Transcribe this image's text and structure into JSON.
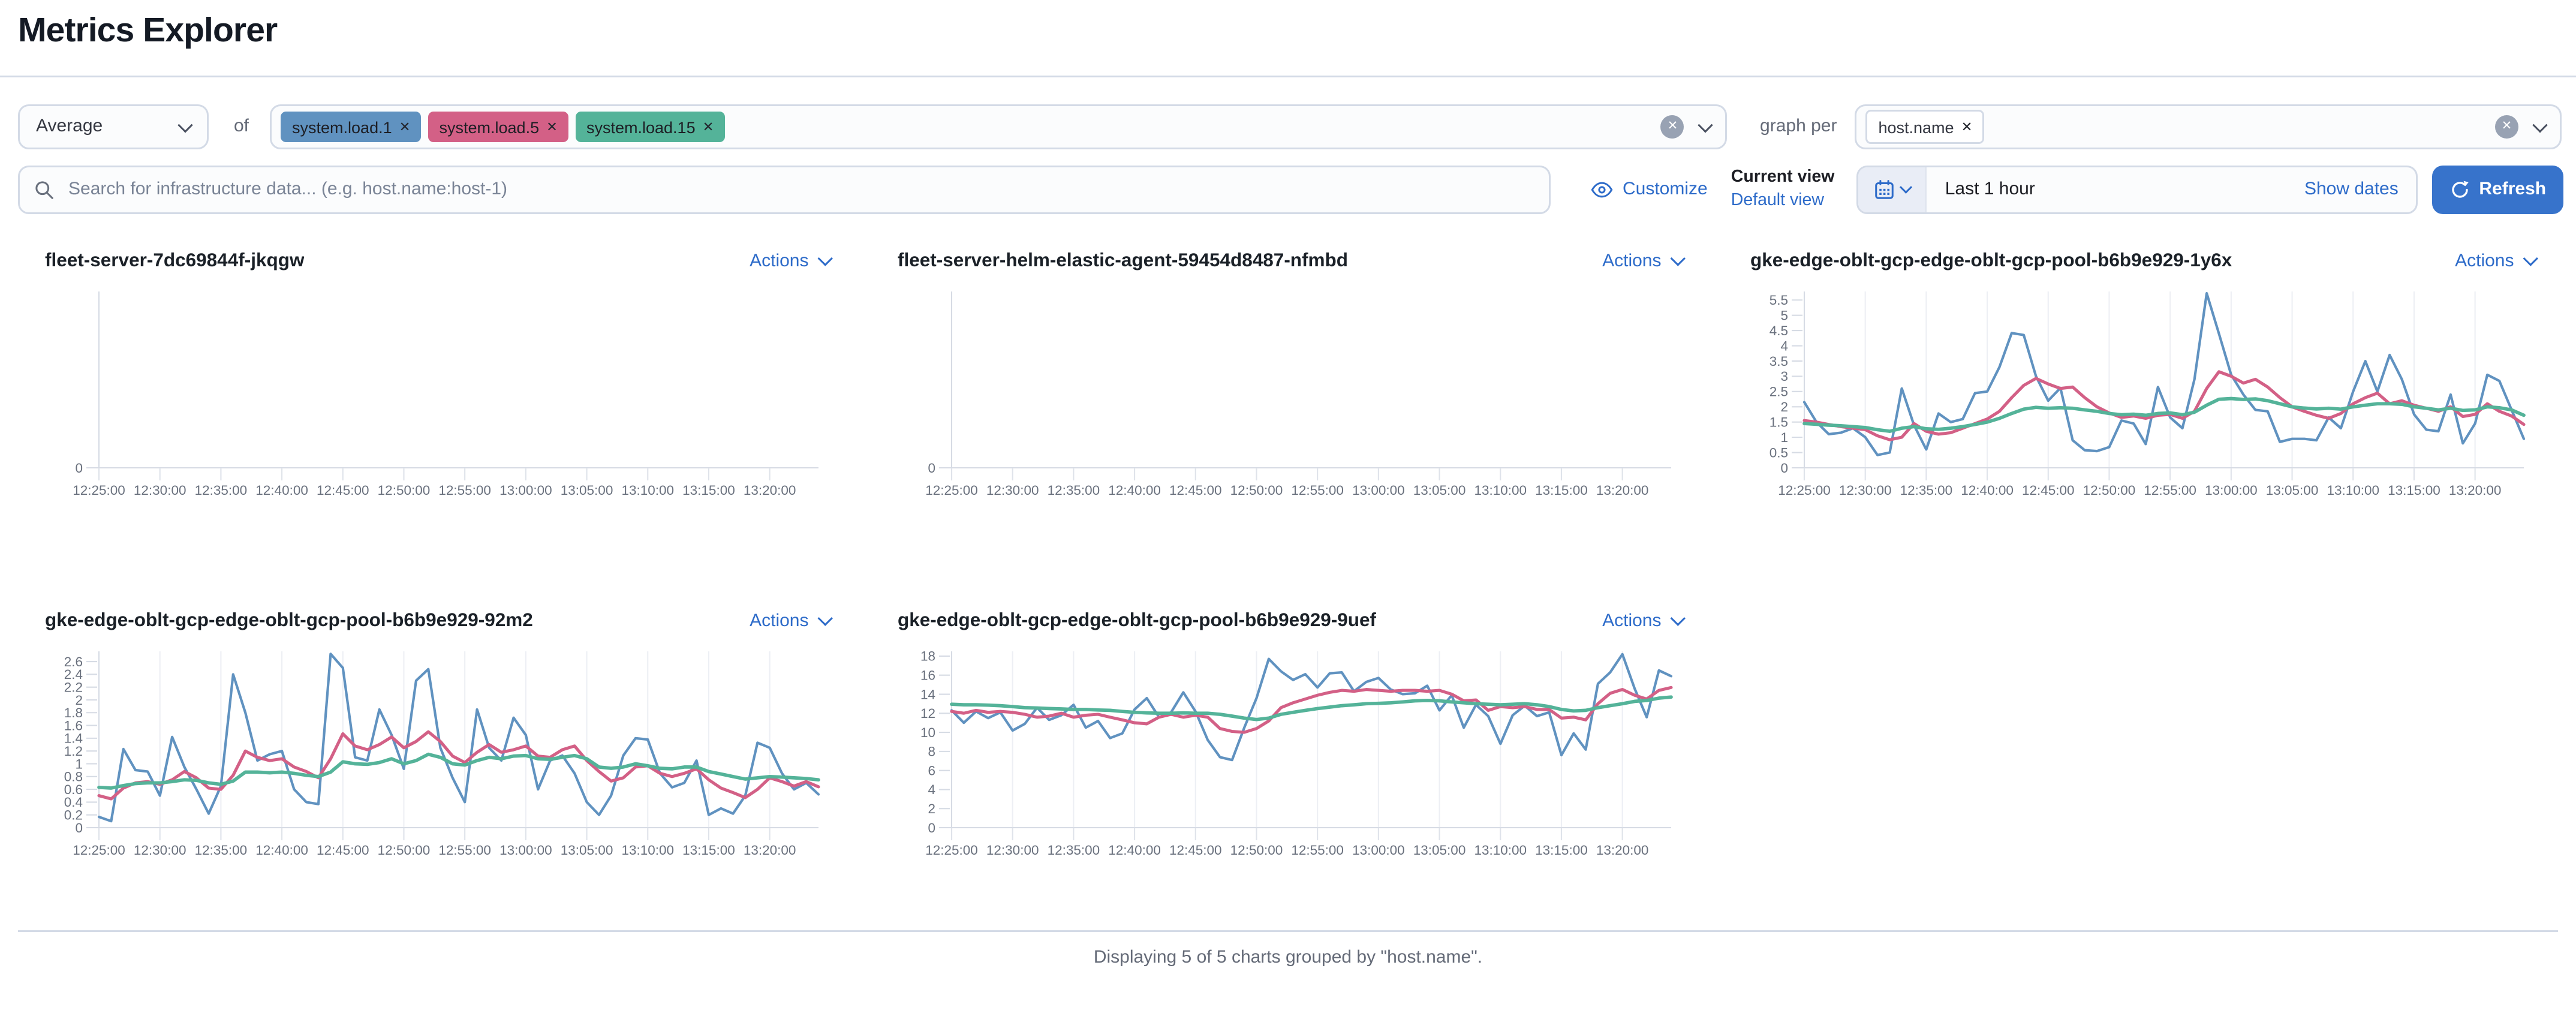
{
  "page": {
    "title": "Metrics Explorer"
  },
  "controls": {
    "aggregation_value": "Average",
    "of_label": "of",
    "metrics": [
      {
        "label": "system.load.1",
        "color": "#6092C0"
      },
      {
        "label": "system.load.5",
        "color": "#D36086"
      },
      {
        "label": "system.load.15",
        "color": "#54B399"
      }
    ],
    "graph_per_label": "graph per",
    "group_by": [
      {
        "label": "host.name"
      }
    ]
  },
  "search": {
    "placeholder": "Search for infrastructure data... (e.g. host.name:host-1)"
  },
  "toolbar": {
    "customize_label": "Customize",
    "current_view_label": "Current view",
    "default_view_label": "Default view",
    "time_range_label": "Last 1 hour",
    "show_dates_label": "Show dates",
    "refresh_label": "Refresh"
  },
  "footer": {
    "text": "Displaying 5 of 5 charts grouped by \"host.name\"."
  },
  "colors": {
    "link": "#2D6BC9",
    "primary_button": "#3773CB",
    "metric_blue": "#6092C0",
    "metric_pink": "#D36086",
    "metric_green": "#54B399",
    "axis_text": "#69707D",
    "border": "#D3DAE6"
  },
  "chart_data": {
    "type": "line",
    "x_ticks": [
      "12:25:00",
      "12:30:00",
      "12:35:00",
      "12:40:00",
      "12:45:00",
      "12:50:00",
      "12:55:00",
      "13:00:00",
      "13:05:00",
      "13:10:00",
      "13:15:00",
      "13:20:00"
    ],
    "x_domain_minutes": 59,
    "legend_position": "none",
    "charts": [
      {
        "title": "fleet-server-7dc69844f-jkqgw",
        "actions_label": "Actions",
        "empty": true,
        "y_ticks": [
          0
        ],
        "y_max": 1,
        "series": []
      },
      {
        "title": "fleet-server-helm-elastic-agent-59454d8487-nfmbd",
        "actions_label": "Actions",
        "empty": true,
        "y_ticks": [
          0
        ],
        "y_max": 1,
        "series": []
      },
      {
        "title": "gke-edge-oblt-gcp-edge-oblt-gcp-pool-b6b9e929-1y6x",
        "actions_label": "Actions",
        "empty": false,
        "y_ticks": [
          0,
          0.5,
          1,
          1.5,
          2,
          2.5,
          3,
          3.5,
          4,
          4.5,
          5,
          5.5
        ],
        "y_max": 5.78,
        "series": [
          {
            "name": "system.load.1",
            "color": "#6092C0",
            "width": 1.4,
            "values": [
              2.15,
              1.5,
              1.1,
              1.15,
              1.3,
              1.0,
              0.42,
              0.5,
              2.6,
              1.4,
              0.6,
              1.78,
              1.5,
              1.6,
              2.45,
              2.5,
              3.3,
              4.42,
              4.35,
              3.0,
              2.2,
              2.62,
              0.9,
              0.58,
              0.55,
              0.68,
              1.55,
              1.45,
              0.78,
              2.65,
              1.65,
              1.3,
              2.9,
              5.72,
              4.4,
              3.05,
              2.4,
              1.9,
              1.85,
              0.85,
              0.95,
              0.95,
              0.9,
              1.65,
              1.3,
              2.5,
              3.5,
              2.5,
              3.7,
              2.9,
              1.75,
              1.25,
              1.2,
              2.4,
              0.8,
              1.45,
              3.05,
              2.85,
              1.9,
              0.95
            ]
          },
          {
            "name": "system.load.5",
            "color": "#D36086",
            "width": 1.7,
            "values": [
              1.55,
              1.5,
              1.42,
              1.35,
              1.3,
              1.25,
              1.05,
              0.92,
              1.0,
              1.45,
              1.2,
              1.1,
              1.15,
              1.3,
              1.45,
              1.6,
              1.85,
              2.3,
              2.7,
              2.93,
              2.75,
              2.6,
              2.65,
              2.3,
              2.0,
              1.8,
              1.65,
              1.7,
              1.62,
              1.72,
              1.75,
              1.62,
              1.85,
              2.6,
              3.15,
              3.0,
              2.78,
              2.9,
              2.65,
              2.3,
              2.0,
              1.85,
              1.72,
              1.62,
              1.78,
              2.1,
              2.3,
              2.45,
              2.1,
              2.2,
              2.05,
              1.95,
              1.85,
              2.0,
              1.68,
              1.75,
              2.1,
              1.85,
              1.7,
              1.42
            ]
          },
          {
            "name": "system.load.15",
            "color": "#54B399",
            "width": 1.9,
            "values": [
              1.45,
              1.43,
              1.4,
              1.38,
              1.35,
              1.32,
              1.25,
              1.2,
              1.3,
              1.35,
              1.28,
              1.26,
              1.3,
              1.35,
              1.42,
              1.5,
              1.62,
              1.78,
              1.92,
              1.98,
              1.95,
              1.97,
              1.95,
              1.9,
              1.85,
              1.78,
              1.74,
              1.76,
              1.72,
              1.78,
              1.8,
              1.74,
              1.82,
              2.05,
              2.25,
              2.27,
              2.24,
              2.26,
              2.2,
              2.1,
              2.0,
              1.96,
              1.93,
              1.95,
              1.92,
              2.0,
              2.05,
              2.1,
              2.1,
              2.08,
              2.0,
              1.95,
              1.9,
              1.95,
              1.88,
              1.9,
              2.0,
              1.97,
              1.9,
              1.72
            ]
          }
        ]
      },
      {
        "title": "gke-edge-oblt-gcp-edge-oblt-gcp-pool-b6b9e929-92m2",
        "actions_label": "Actions",
        "empty": false,
        "y_ticks": [
          0,
          0.2,
          0.4,
          0.6,
          0.8,
          1,
          1.2,
          1.4,
          1.6,
          1.8,
          2,
          2.2,
          2.4,
          2.6
        ],
        "y_max": 2.76,
        "series": [
          {
            "name": "system.load.1",
            "color": "#6092C0",
            "width": 1.4,
            "values": [
              0.17,
              0.1,
              1.23,
              0.9,
              0.88,
              0.5,
              1.42,
              0.95,
              0.6,
              0.22,
              0.65,
              2.4,
              1.8,
              1.05,
              1.15,
              1.2,
              0.6,
              0.4,
              0.37,
              2.72,
              2.5,
              1.1,
              1.05,
              1.85,
              1.45,
              0.92,
              2.3,
              2.48,
              1.25,
              0.78,
              0.4,
              1.85,
              1.25,
              1.05,
              1.72,
              1.45,
              0.6,
              1.05,
              1.13,
              0.85,
              0.4,
              0.2,
              0.5,
              1.13,
              1.4,
              1.38,
              0.85,
              0.63,
              0.7,
              1.05,
              0.2,
              0.3,
              0.22,
              0.5,
              1.33,
              1.25,
              0.85,
              0.6,
              0.7,
              0.52
            ]
          },
          {
            "name": "system.load.5",
            "color": "#D36086",
            "width": 1.7,
            "values": [
              0.5,
              0.45,
              0.62,
              0.7,
              0.72,
              0.68,
              0.75,
              0.88,
              0.78,
              0.62,
              0.6,
              0.82,
              1.2,
              1.1,
              1.05,
              1.08,
              0.95,
              0.88,
              0.78,
              1.08,
              1.47,
              1.28,
              1.22,
              1.3,
              1.42,
              1.25,
              1.35,
              1.5,
              1.35,
              1.12,
              1.02,
              1.18,
              1.3,
              1.18,
              1.22,
              1.28,
              1.12,
              1.1,
              1.22,
              1.28,
              1.05,
              0.88,
              0.73,
              0.78,
              0.95,
              0.97,
              0.85,
              0.8,
              0.85,
              0.92,
              0.75,
              0.62,
              0.55,
              0.47,
              0.6,
              0.78,
              0.72,
              0.65,
              0.72,
              0.64
            ]
          },
          {
            "name": "system.load.15",
            "color": "#54B399",
            "width": 1.9,
            "values": [
              0.63,
              0.62,
              0.66,
              0.69,
              0.7,
              0.7,
              0.72,
              0.75,
              0.74,
              0.7,
              0.68,
              0.73,
              0.87,
              0.87,
              0.86,
              0.87,
              0.85,
              0.82,
              0.8,
              0.87,
              1.03,
              1.0,
              0.99,
              1.02,
              1.08,
              1.0,
              1.05,
              1.15,
              1.1,
              1.0,
              0.98,
              1.05,
              1.1,
              1.08,
              1.12,
              1.13,
              1.08,
              1.07,
              1.1,
              1.13,
              1.08,
              0.95,
              0.93,
              0.95,
              1.0,
              0.97,
              0.93,
              0.92,
              0.95,
              0.95,
              0.88,
              0.84,
              0.8,
              0.76,
              0.78,
              0.8,
              0.79,
              0.78,
              0.77,
              0.75
            ]
          }
        ]
      },
      {
        "title": "gke-edge-oblt-gcp-edge-oblt-gcp-pool-b6b9e929-9uef",
        "actions_label": "Actions",
        "empty": false,
        "y_ticks": [
          0,
          2,
          4,
          6,
          8,
          10,
          12,
          14,
          16,
          18
        ],
        "y_max": 18.5,
        "series": [
          {
            "name": "system.load.1",
            "color": "#6092C0",
            "width": 1.4,
            "values": [
              12.3,
              11.0,
              12.2,
              11.5,
              12.1,
              10.2,
              10.9,
              12.6,
              11.3,
              11.8,
              12.9,
              10.5,
              11.2,
              9.4,
              9.9,
              12.4,
              13.6,
              11.6,
              12.1,
              14.2,
              12.2,
              9.2,
              7.4,
              7.1,
              10.5,
              13.6,
              17.7,
              16.4,
              15.5,
              16.1,
              14.7,
              16.2,
              16.3,
              14.3,
              15.3,
              15.7,
              14.5,
              14.0,
              14.1,
              14.9,
              12.3,
              13.9,
              10.5,
              12.9,
              11.7,
              8.8,
              11.8,
              12.8,
              11.7,
              12.1,
              7.6,
              9.9,
              8.2,
              15.1,
              16.3,
              18.2,
              14.6,
              11.6,
              16.5,
              15.9
            ]
          },
          {
            "name": "system.load.5",
            "color": "#D36086",
            "width": 1.7,
            "values": [
              12.2,
              12.0,
              12.3,
              12.1,
              12.2,
              12.1,
              11.9,
              11.6,
              11.7,
              12.0,
              11.6,
              11.8,
              11.9,
              11.6,
              11.3,
              11.0,
              10.9,
              11.6,
              11.9,
              11.6,
              11.8,
              11.6,
              10.4,
              10.1,
              10.0,
              10.4,
              11.2,
              12.6,
              13.1,
              13.5,
              13.9,
              14.2,
              14.4,
              14.3,
              14.5,
              14.4,
              14.3,
              14.4,
              14.4,
              14.3,
              14.4,
              14.0,
              13.3,
              13.4,
              12.3,
              12.7,
              12.6,
              12.7,
              12.4,
              12.4,
              11.5,
              11.6,
              11.3,
              13.0,
              14.1,
              14.5,
              13.9,
              13.5,
              14.4,
              14.7
            ]
          },
          {
            "name": "system.load.15",
            "color": "#54B399",
            "width": 1.9,
            "values": [
              12.95,
              12.9,
              12.9,
              12.85,
              12.8,
              12.7,
              12.6,
              12.55,
              12.5,
              12.45,
              12.4,
              12.4,
              12.35,
              12.3,
              12.2,
              12.1,
              12.05,
              12.0,
              12.0,
              12.05,
              12.0,
              12.0,
              11.9,
              11.7,
              11.5,
              11.35,
              11.5,
              11.9,
              12.1,
              12.3,
              12.5,
              12.65,
              12.8,
              12.9,
              13.0,
              13.05,
              13.1,
              13.2,
              13.3,
              13.35,
              13.3,
              13.2,
              13.1,
              13.0,
              12.95,
              12.9,
              12.95,
              13.0,
              12.9,
              12.7,
              12.4,
              12.25,
              12.3,
              12.6,
              12.8,
              13.0,
              13.25,
              13.35,
              13.6,
              13.7
            ]
          }
        ]
      }
    ]
  }
}
